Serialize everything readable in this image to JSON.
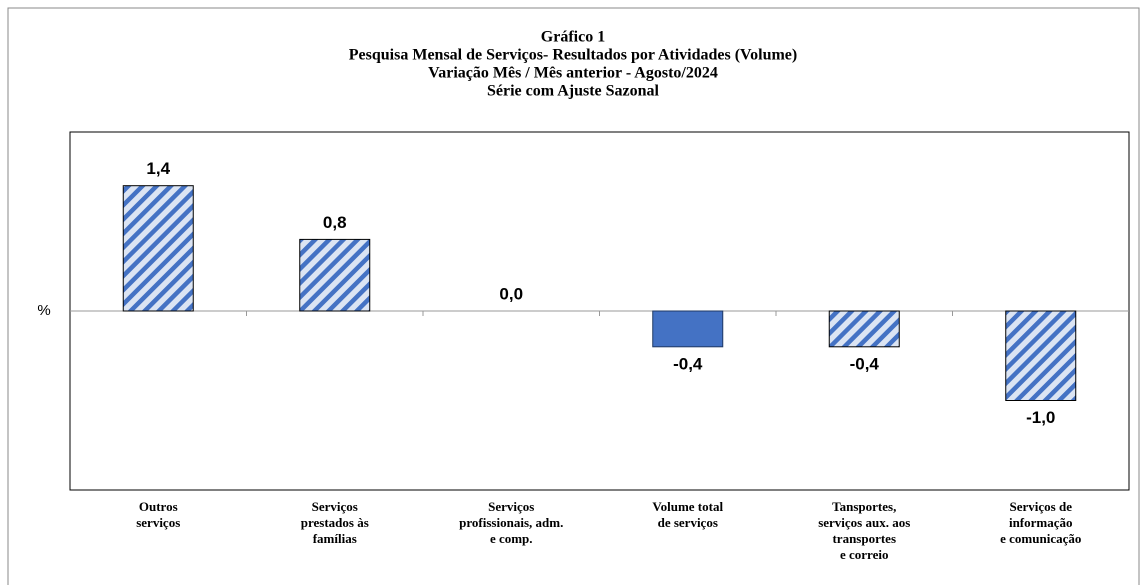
{
  "chart_data": {
    "type": "bar",
    "title": [
      "Gráfico 1",
      "Pesquisa Mensal de Serviços- Resultados por Atividades (Volume)",
      "Variação Mês / Mês anterior - Agosto/2024",
      "Série com Ajuste Sazonal"
    ],
    "y_label": "%",
    "categories": [
      [
        "Outros",
        "serviços"
      ],
      [
        "Serviços",
        "prestados às",
        "famílias"
      ],
      [
        "Serviços",
        "profissionais,  adm.",
        "e comp."
      ],
      [
        "Volume total",
        "de serviços"
      ],
      [
        "Tansportes,",
        "serviços aux. aos",
        "transportes",
        "e correio"
      ],
      [
        "Serviços de",
        "informação",
        "e comunicação"
      ]
    ],
    "values": [
      1.4,
      0.8,
      0.0,
      -0.4,
      -0.4,
      -1.0
    ],
    "value_labels": [
      "1,4",
      "0,8",
      "0,0",
      "-0,4",
      "-0,4",
      "-1,0"
    ],
    "color": "#4472c4",
    "fills": [
      "hatch",
      "hatch",
      "hatch",
      "solid",
      "hatch",
      "hatch"
    ],
    "ylim": [
      -2,
      2
    ]
  }
}
